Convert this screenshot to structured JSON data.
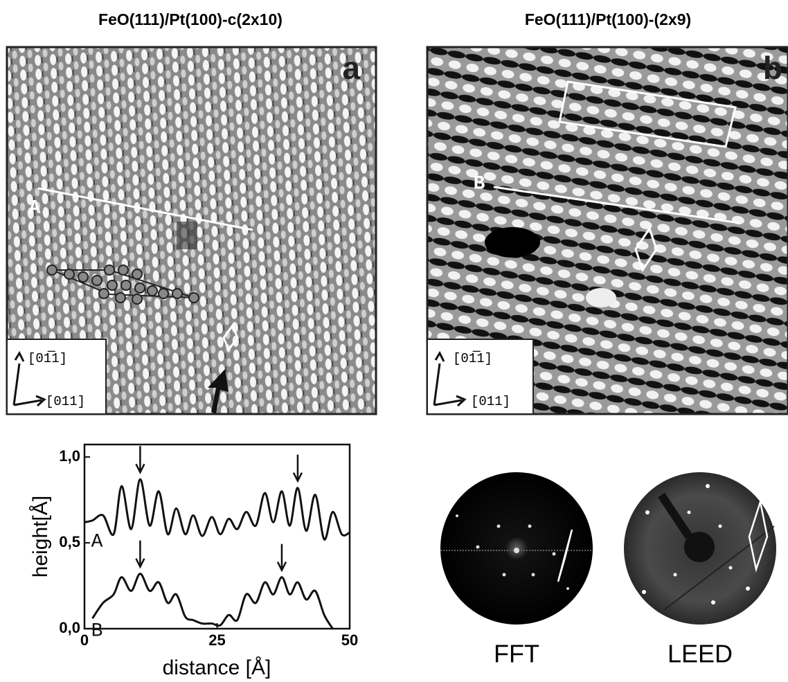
{
  "panels": [
    {
      "title": "FeO(111)/Pt(100)-c(2x10)",
      "label": "a",
      "line_label": "A",
      "directions": [
        "[01̅1]",
        "[011]"
      ]
    },
    {
      "title": "FeO(111)/Pt(100)-(2x9)",
      "label": "b",
      "line_label": "B",
      "directions": [
        "[01̅1]",
        "[011]"
      ]
    }
  ],
  "diffraction_labels": [
    "FFT",
    "LEED"
  ],
  "chart_data": {
    "type": "line",
    "x_label": "distance [Å]",
    "y_label": "height[Å]",
    "xlim": [
      0,
      50
    ],
    "ylim": [
      0,
      1.0
    ],
    "xticks": [
      0,
      25,
      50
    ],
    "yticks": [
      {
        "value": 0,
        "label": "0,0"
      },
      {
        "value": 0.5,
        "label": "0,5"
      },
      {
        "value": 1.0,
        "label": "1,0"
      }
    ],
    "x": [
      0,
      1.5,
      3.5,
      5.5,
      7,
      8.8,
      10.5,
      12.3,
      14,
      15.7,
      17.3,
      19,
      20.5,
      22.2,
      24,
      25.6,
      27.2,
      28.8,
      30.5,
      32.3,
      34,
      35.6,
      37.2,
      38.7,
      40.2,
      41.8,
      43.5,
      45.2,
      46.8,
      48.5,
      50
    ],
    "series": [
      {
        "name": "A",
        "color": "#111111",
        "arrows_x": [
          10.5,
          40.2
        ],
        "values": [
          0.62,
          0.63,
          0.66,
          0.55,
          0.83,
          0.58,
          0.87,
          0.6,
          0.8,
          0.55,
          0.7,
          0.55,
          0.66,
          0.54,
          0.65,
          0.55,
          0.64,
          0.58,
          0.68,
          0.6,
          0.79,
          0.62,
          0.8,
          0.6,
          0.82,
          0.57,
          0.78,
          0.52,
          0.68,
          0.55,
          0.56
        ]
      },
      {
        "name": "B",
        "color": "#111111",
        "arrows_x": [
          10.5,
          37.2
        ],
        "values": [
          null,
          0.06,
          0.15,
          0.2,
          0.3,
          0.22,
          0.32,
          0.22,
          0.27,
          0.15,
          0.2,
          0.07,
          0.05,
          0.03,
          0.03,
          0.02,
          0.08,
          0.05,
          0.2,
          0.15,
          0.27,
          0.2,
          0.3,
          0.2,
          0.27,
          0.17,
          0.22,
          0.08,
          0.0,
          null,
          null
        ]
      }
    ]
  }
}
